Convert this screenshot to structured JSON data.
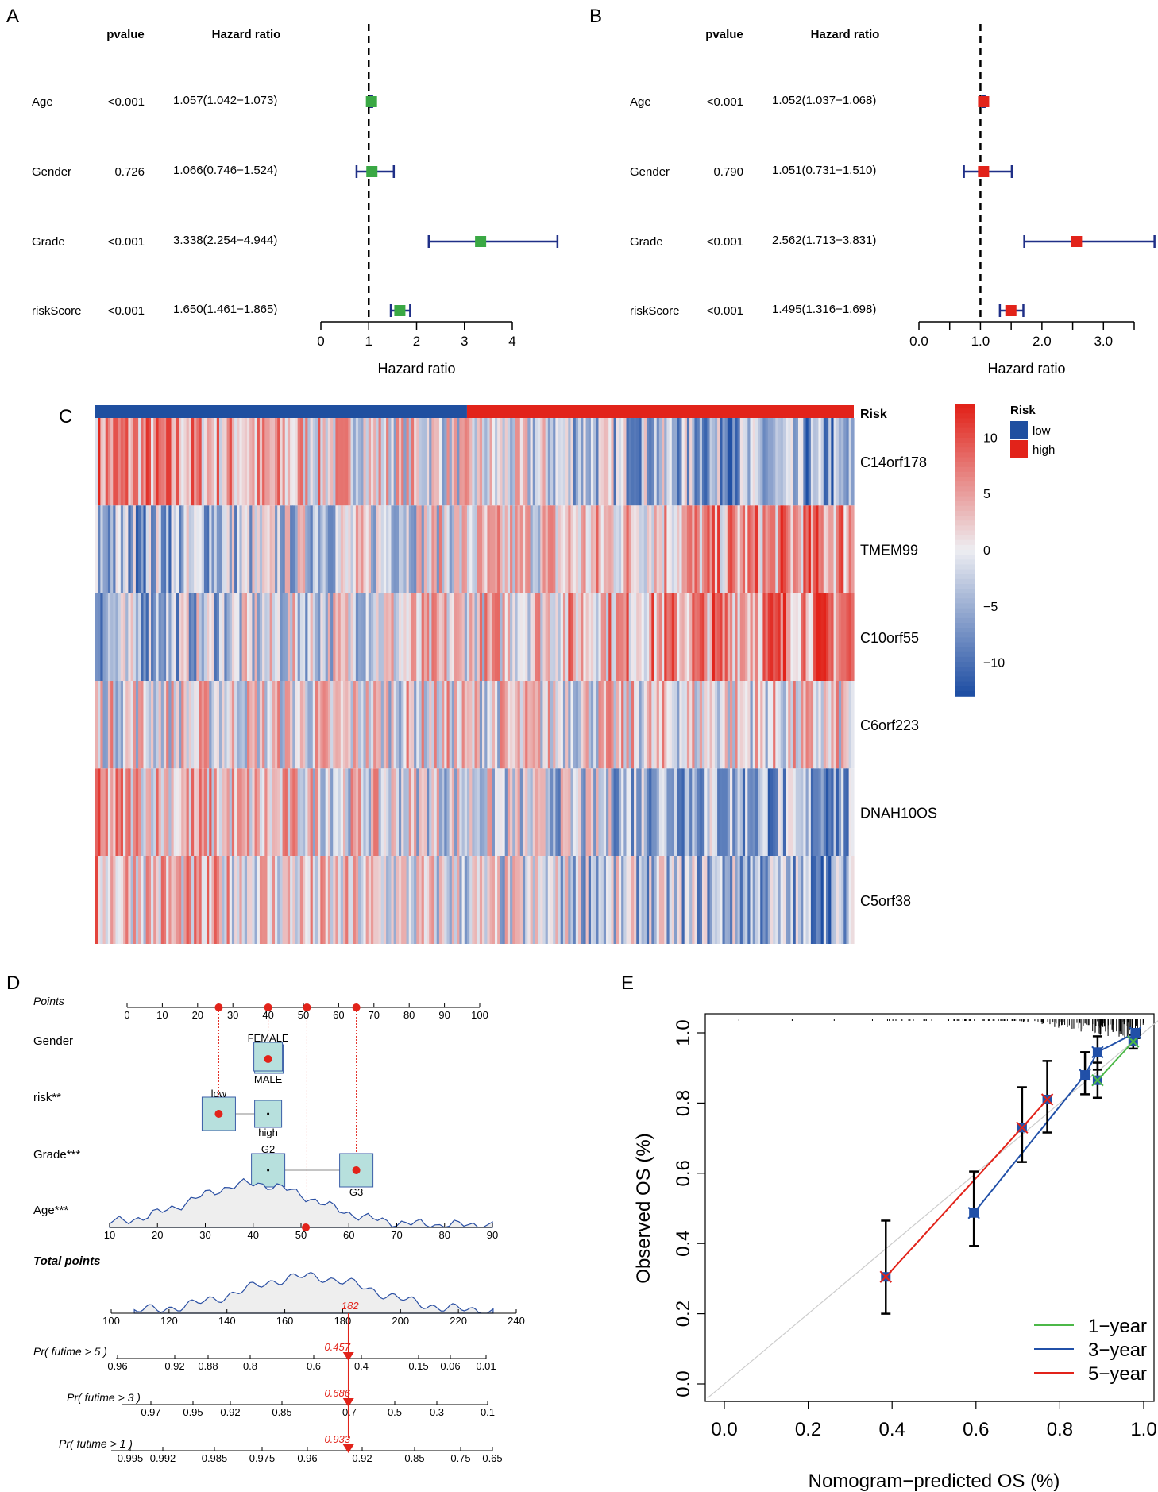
{
  "chart_data": [
    {
      "panel": "A",
      "type": "forest",
      "header_pvalue": "pvalue",
      "header_hr": "Hazard ratio",
      "xlabel": "Hazard ratio",
      "xticks": [
        "0",
        "1",
        "2",
        "3",
        "4"
      ],
      "xlim": [
        0,
        4
      ],
      "ref": 1,
      "color": "#3aa844",
      "rows": [
        {
          "name": "Age",
          "p": "<0.001",
          "hr_text": "1.057(1.042−1.073)",
          "hr": 1.057,
          "lo": 1.042,
          "hi": 1.073
        },
        {
          "name": "Gender",
          "p": "0.726",
          "hr_text": "1.066(0.746−1.524)",
          "hr": 1.066,
          "lo": 0.746,
          "hi": 1.524
        },
        {
          "name": "Grade",
          "p": "<0.001",
          "hr_text": "3.338(2.254−4.944)",
          "hr": 3.338,
          "lo": 2.254,
          "hi": 4.944
        },
        {
          "name": "riskScore",
          "p": "<0.001",
          "hr_text": "1.650(1.461−1.865)",
          "hr": 1.65,
          "lo": 1.461,
          "hi": 1.865
        }
      ]
    },
    {
      "panel": "B",
      "type": "forest",
      "header_pvalue": "pvalue",
      "header_hr": "Hazard ratio",
      "xlabel": "Hazard ratio",
      "xticks": [
        "0.0",
        "1.0",
        "2.0",
        "3.0"
      ],
      "xlim": [
        0,
        3.5
      ],
      "ref": 1,
      "color": "#e2231a",
      "rows": [
        {
          "name": "Age",
          "p": "<0.001",
          "hr_text": "1.052(1.037−1.068)",
          "hr": 1.052,
          "lo": 1.037,
          "hi": 1.068
        },
        {
          "name": "Gender",
          "p": "0.790",
          "hr_text": "1.051(0.731−1.510)",
          "hr": 1.051,
          "lo": 0.731,
          "hi": 1.51
        },
        {
          "name": "Grade",
          "p": "<0.001",
          "hr_text": "2.562(1.713−3.831)",
          "hr": 2.562,
          "lo": 1.713,
          "hi": 3.831
        },
        {
          "name": "riskScore",
          "p": "<0.001",
          "hr_text": "1.495(1.316−1.698)",
          "hr": 1.495,
          "lo": 1.316,
          "hi": 1.698
        }
      ]
    },
    {
      "panel": "C",
      "type": "heatmap",
      "genes": [
        "C14orf178",
        "TMEM99",
        "C10orf55",
        "C6orf223",
        "DNAH10OS",
        "C5orf38"
      ],
      "annotation_label": "Risk",
      "legend_title": "Risk",
      "legend_items": [
        {
          "label": "low",
          "color": "#1f4fa0"
        },
        {
          "label": "high",
          "color": "#e2231a"
        }
      ],
      "low_fraction": 0.49,
      "colorbar_ticks": [
        "10",
        "5",
        "0",
        "−5",
        "−10"
      ],
      "colorbar_range": [
        -13,
        13
      ]
    },
    {
      "panel": "D",
      "type": "nomogram",
      "points_label": "Points",
      "points_ticks": [
        "0",
        "10",
        "20",
        "30",
        "40",
        "50",
        "60",
        "70",
        "80",
        "90",
        "100"
      ],
      "variables": [
        {
          "name": "Gender",
          "levels": [
            "FEMALE",
            "MALE"
          ],
          "points": 40
        },
        {
          "name": "risk**",
          "levels": [
            "low",
            "high"
          ],
          "points": 26
        },
        {
          "name": "Grade***",
          "levels": [
            "G2",
            "G3"
          ],
          "points": 65
        },
        {
          "name": "Age***",
          "points": 51
        }
      ],
      "age_ticks": [
        "10",
        "20",
        "30",
        "40",
        "50",
        "60",
        "70",
        "80",
        "90"
      ],
      "age_value": 51,
      "total_label": "Total points",
      "total_ticks": [
        "100",
        "120",
        "140",
        "160",
        "180",
        "200",
        "220",
        "240"
      ],
      "total_value": "182",
      "probabilities": [
        {
          "label": "Pr( futime > 5 )",
          "value": "0.457",
          "ticks": [
            "0.96",
            "0.92",
            "0.88",
            "0.8",
            "0.6",
            "0.4",
            "0.15",
            "0.06",
            "0.01"
          ]
        },
        {
          "label": "Pr( futime > 3 )",
          "value": "0.686",
          "ticks": [
            "0.97",
            "0.95",
            "0.92",
            "0.85",
            "0.7",
            "0.5",
            "0.3",
            "0.1"
          ]
        },
        {
          "label": "Pr( futime > 1 )",
          "value": "0.933",
          "ticks": [
            "0.995",
            "0.992",
            "0.985",
            "0.975",
            "0.96",
            "0.92",
            "0.85",
            "0.75",
            "0.65"
          ]
        }
      ]
    },
    {
      "panel": "E",
      "type": "line",
      "xlabel": "Nomogram−predicted OS (%)",
      "ylabel": "Observed OS (%)",
      "xlim": [
        0,
        1
      ],
      "ylim": [
        0,
        1
      ],
      "xticks": [
        "0.0",
        "0.2",
        "0.4",
        "0.6",
        "0.8",
        "1.0"
      ],
      "yticks": [
        "0.0",
        "0.2",
        "0.4",
        "0.6",
        "0.8",
        "1.0"
      ],
      "series": [
        {
          "name": "1−year",
          "color": "#4cb848",
          "points": [
            {
              "x": 0.89,
              "y": 0.865,
              "lo": 0.815,
              "hi": 0.915
            },
            {
              "x": 0.975,
              "y": 0.975,
              "lo": 0.955,
              "hi": 0.995
            }
          ]
        },
        {
          "name": "3−year",
          "color": "#2150a8",
          "points": [
            {
              "x": 0.595,
              "y": 0.487,
              "lo": 0.393,
              "hi": 0.605
            },
            {
              "x": 0.86,
              "y": 0.88,
              "lo": 0.825,
              "hi": 0.945
            },
            {
              "x": 0.89,
              "y": 0.945,
              "lo": 0.895,
              "hi": 0.99
            },
            {
              "x": 0.98,
              "y": 1.0,
              "lo": 0.985,
              "hi": 1.0
            }
          ]
        },
        {
          "name": "5−year",
          "color": "#e2231a",
          "points": [
            {
              "x": 0.385,
              "y": 0.305,
              "lo": 0.2,
              "hi": 0.465
            },
            {
              "x": 0.71,
              "y": 0.73,
              "lo": 0.632,
              "hi": 0.845
            },
            {
              "x": 0.77,
              "y": 0.81,
              "lo": 0.716,
              "hi": 0.92
            }
          ]
        }
      ]
    }
  ],
  "panel_labels": [
    "A",
    "B",
    "C",
    "D",
    "E"
  ]
}
